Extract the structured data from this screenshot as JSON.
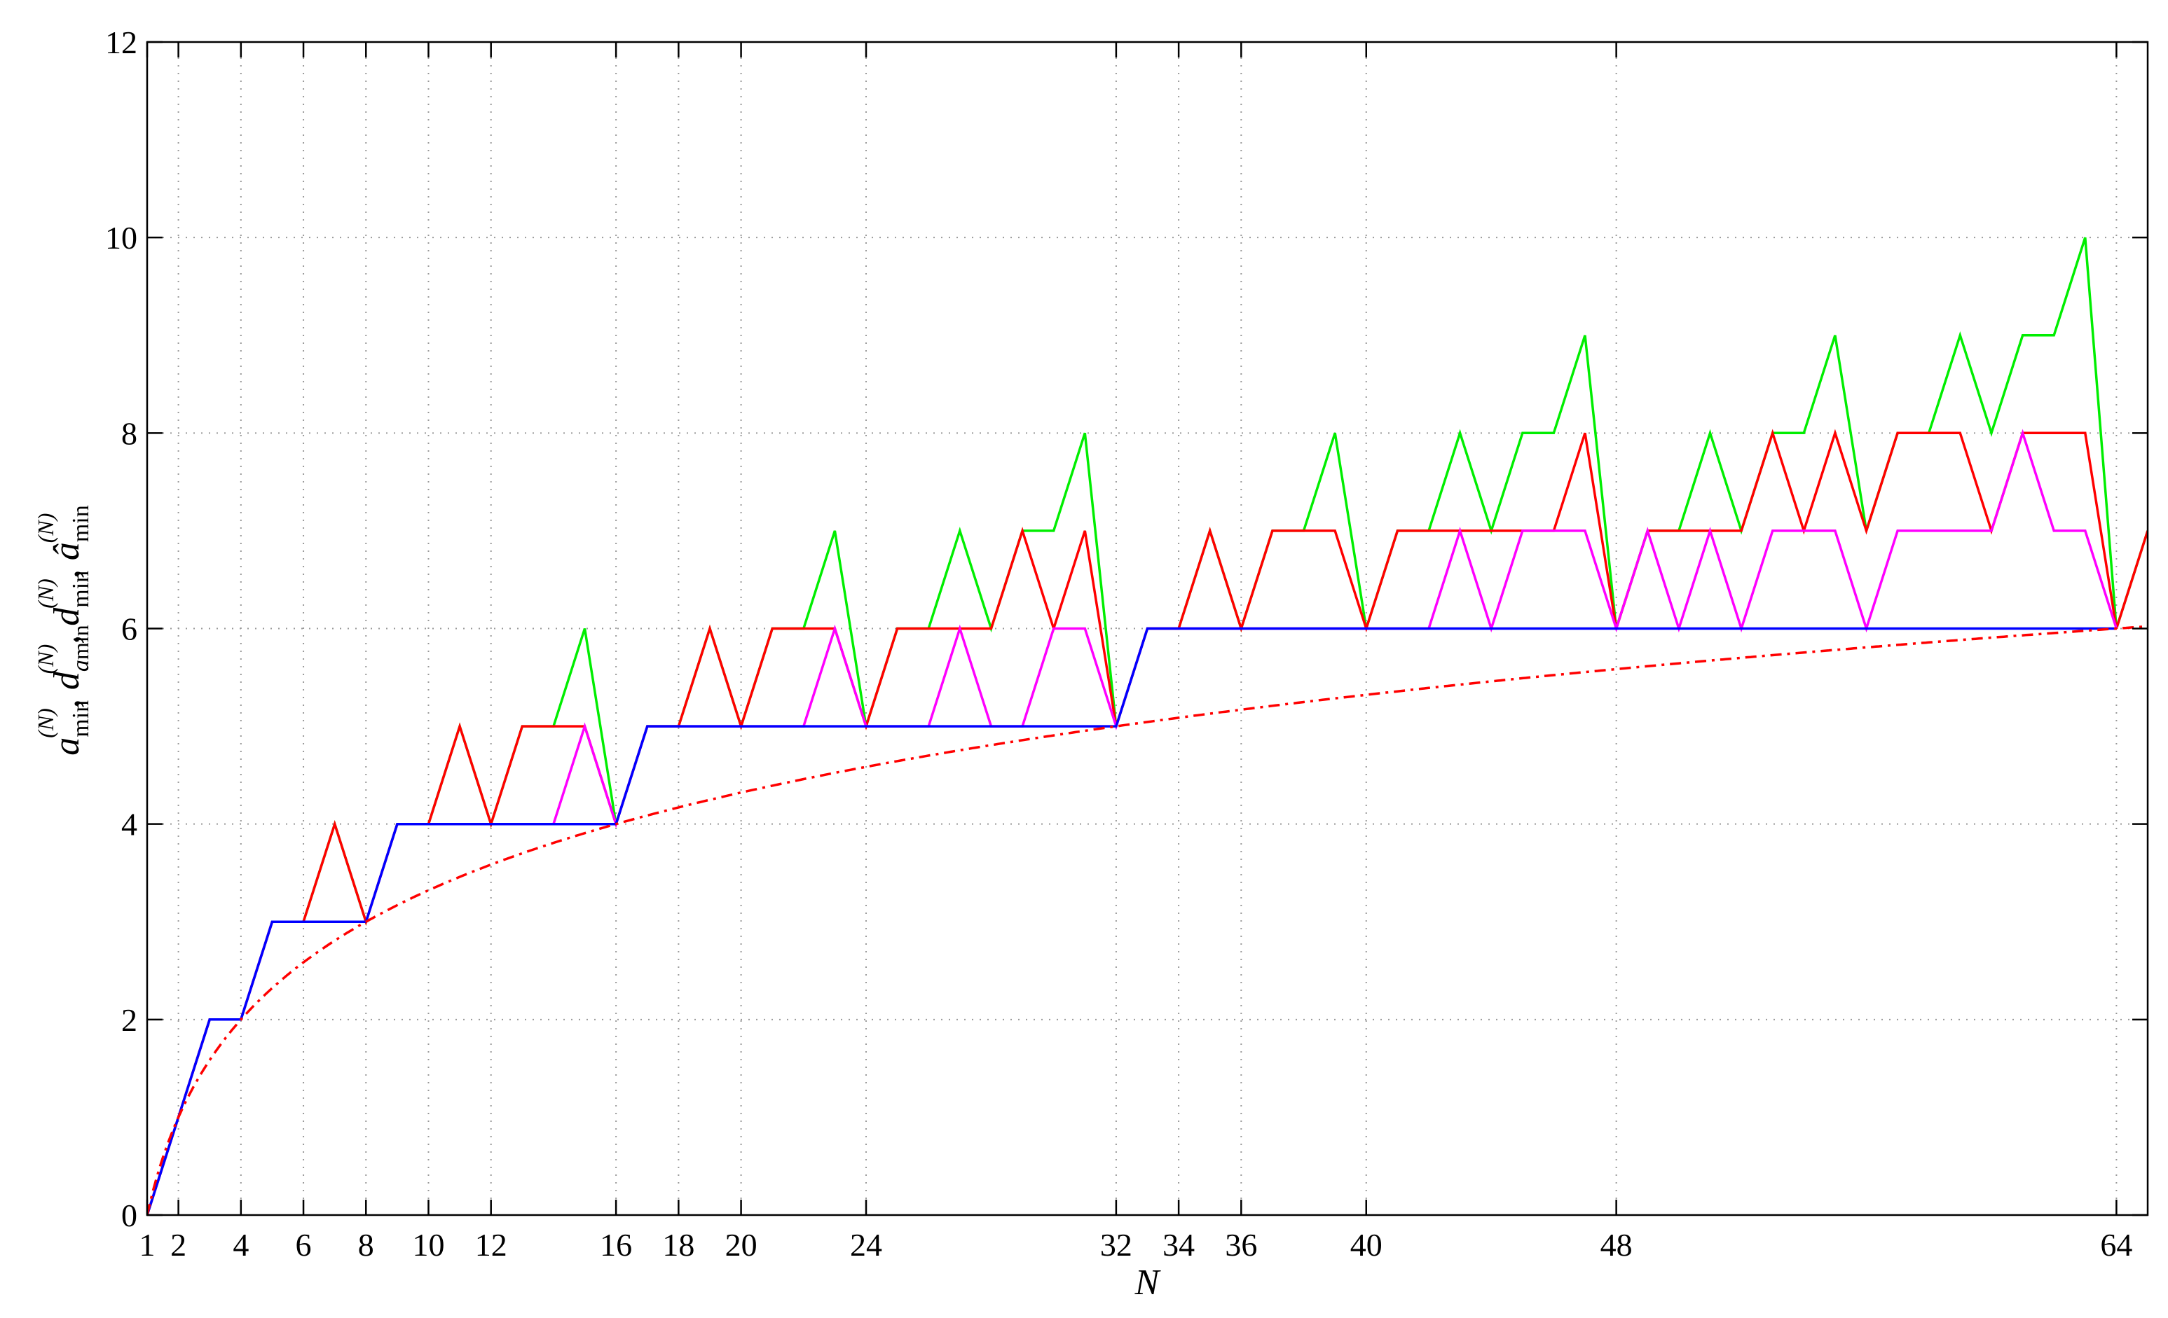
{
  "chart_data": {
    "type": "line",
    "title": "",
    "xlabel": "N",
    "ylabel": "a_min^(N), d_a_min^(N), d_min^(N), â_min^(N)",
    "xlim": [
      1,
      65
    ],
    "ylim": [
      0,
      12
    ],
    "grid": true,
    "xticks": [
      1,
      2,
      4,
      6,
      8,
      10,
      12,
      16,
      18,
      20,
      24,
      32,
      34,
      36,
      40,
      48,
      64
    ],
    "yticks": [
      0,
      2,
      4,
      6,
      8,
      10,
      12
    ],
    "series": [
      {
        "color": "#00ee00",
        "style": "solid",
        "x": [
          1,
          2,
          3,
          4,
          5,
          6,
          7,
          8,
          9,
          10,
          11,
          12,
          13,
          14,
          15,
          16,
          17,
          18,
          19,
          20,
          21,
          22,
          23,
          24,
          25,
          26,
          27,
          28,
          29,
          30,
          31,
          32,
          33,
          34,
          35,
          36,
          37,
          38,
          39,
          40,
          41,
          42,
          43,
          44,
          45,
          46,
          47,
          48,
          49,
          50,
          51,
          52,
          53,
          54,
          55,
          56,
          57,
          58,
          59,
          60,
          61,
          62,
          63,
          64,
          65
        ],
        "y": [
          0,
          1,
          2,
          2,
          3,
          3,
          4,
          3,
          4,
          4,
          5,
          4,
          5,
          5,
          6,
          4,
          5,
          5,
          6,
          5,
          6,
          6,
          7,
          5,
          6,
          6,
          7,
          6,
          7,
          7,
          8,
          5,
          6,
          6,
          7,
          6,
          7,
          7,
          8,
          6,
          7,
          7,
          8,
          7,
          8,
          8,
          9,
          6,
          7,
          7,
          8,
          7,
          8,
          8,
          9,
          7,
          8,
          8,
          9,
          8,
          9,
          9,
          10,
          6,
          7
        ]
      },
      {
        "color": "#ff0000",
        "style": "solid",
        "x": [
          1,
          2,
          3,
          4,
          5,
          6,
          7,
          8,
          9,
          10,
          11,
          12,
          13,
          14,
          15,
          16,
          17,
          18,
          19,
          20,
          21,
          22,
          23,
          24,
          25,
          26,
          27,
          28,
          29,
          30,
          31,
          32,
          33,
          34,
          35,
          36,
          37,
          38,
          39,
          40,
          41,
          42,
          43,
          44,
          45,
          46,
          47,
          48,
          49,
          50,
          51,
          52,
          53,
          54,
          55,
          56,
          57,
          58,
          59,
          60,
          61,
          62,
          63,
          64,
          65
        ],
        "y": [
          0,
          1,
          2,
          2,
          3,
          3,
          4,
          3,
          4,
          4,
          5,
          4,
          5,
          5,
          5,
          4,
          5,
          5,
          6,
          5,
          6,
          6,
          6,
          5,
          6,
          6,
          6,
          6,
          7,
          6,
          7,
          5,
          6,
          6,
          7,
          6,
          7,
          7,
          7,
          6,
          7,
          7,
          7,
          7,
          7,
          7,
          8,
          6,
          7,
          7,
          7,
          7,
          8,
          7,
          8,
          7,
          8,
          8,
          8,
          7,
          8,
          8,
          8,
          6,
          7
        ]
      },
      {
        "color": "#ff00ff",
        "style": "solid",
        "x": [
          1,
          2,
          3,
          4,
          5,
          6,
          7,
          8,
          9,
          10,
          11,
          12,
          13,
          14,
          15,
          16,
          17,
          18,
          19,
          20,
          21,
          22,
          23,
          24,
          25,
          26,
          27,
          28,
          29,
          30,
          31,
          32,
          33,
          34,
          35,
          36,
          37,
          38,
          39,
          40,
          41,
          42,
          43,
          44,
          45,
          46,
          47,
          48,
          49,
          50,
          51,
          52,
          53,
          54,
          55,
          56,
          57,
          58,
          59,
          60,
          61,
          62,
          63,
          64
        ],
        "y": [
          0,
          1,
          2,
          2,
          3,
          3,
          3,
          3,
          4,
          4,
          4,
          4,
          4,
          4,
          5,
          4,
          5,
          5,
          5,
          5,
          5,
          5,
          6,
          5,
          5,
          5,
          6,
          5,
          5,
          6,
          6,
          5,
          6,
          6,
          6,
          6,
          6,
          6,
          6,
          6,
          6,
          6,
          7,
          6,
          7,
          7,
          7,
          6,
          7,
          6,
          7,
          6,
          7,
          7,
          7,
          6,
          7,
          7,
          7,
          7,
          8,
          7,
          7,
          6
        ]
      },
      {
        "color": "#0000ff",
        "style": "solid",
        "x": [
          1,
          2,
          3,
          4,
          5,
          6,
          7,
          8,
          9,
          10,
          11,
          12,
          13,
          14,
          15,
          16,
          17,
          18,
          19,
          20,
          21,
          22,
          23,
          24,
          25,
          26,
          27,
          28,
          29,
          30,
          31,
          32,
          33,
          34,
          35,
          36,
          37,
          38,
          39,
          40,
          41,
          42,
          43,
          44,
          45,
          46,
          47,
          48,
          49,
          50,
          51,
          52,
          53,
          54,
          55,
          56,
          57,
          58,
          59,
          60,
          61,
          62,
          63,
          64
        ],
        "y": [
          0,
          1,
          2,
          2,
          3,
          3,
          3,
          3,
          4,
          4,
          4,
          4,
          4,
          4,
          4,
          4,
          5,
          5,
          5,
          5,
          5,
          5,
          5,
          5,
          5,
          5,
          5,
          5,
          5,
          5,
          5,
          5,
          6,
          6,
          6,
          6,
          6,
          6,
          6,
          6,
          6,
          6,
          6,
          6,
          6,
          6,
          6,
          6,
          6,
          6,
          6,
          6,
          6,
          6,
          6,
          6,
          6,
          6,
          6,
          6,
          6,
          6,
          6,
          6
        ]
      },
      {
        "color": "#ff0000",
        "style": "dashdot",
        "function": "log2(N)",
        "x": [
          1,
          1.25,
          1.5,
          2,
          3,
          4,
          6,
          8,
          12,
          16,
          20,
          24,
          32,
          40,
          48,
          56,
          64,
          65
        ],
        "y": [
          0,
          0.32,
          0.58,
          1,
          1.58,
          2,
          2.58,
          3,
          3.58,
          4,
          4.32,
          4.58,
          5,
          5.32,
          5.58,
          5.81,
          6,
          6.02
        ]
      }
    ]
  }
}
